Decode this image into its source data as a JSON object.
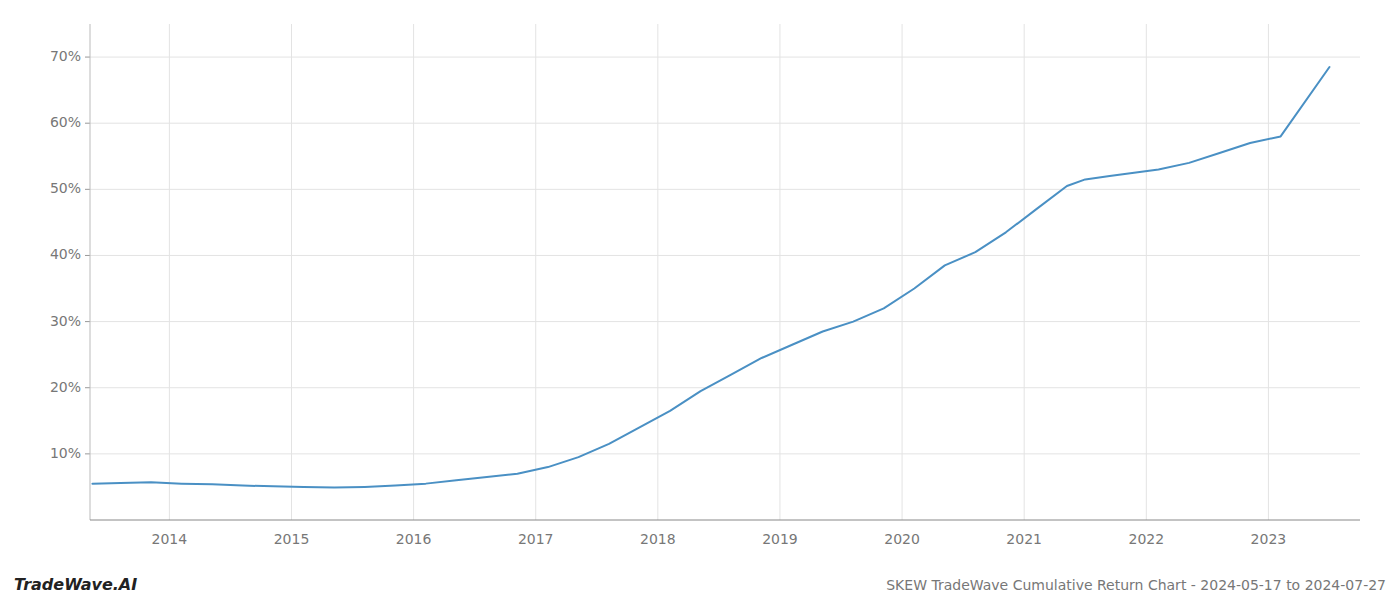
{
  "chart_data": {
    "type": "line",
    "title": "SKEW TradeWave Cumulative Return Chart - 2024-05-17 to 2024-07-27",
    "annotations": [
      "TradeWave.AI"
    ],
    "color": "#4a90c4",
    "grid": true,
    "x": [
      2013.37,
      2013.6,
      2013.85,
      2014.1,
      2014.35,
      2014.6,
      2014.85,
      2015.1,
      2015.35,
      2015.6,
      2015.85,
      2016.1,
      2016.35,
      2016.6,
      2016.85,
      2017.1,
      2017.35,
      2017.6,
      2017.85,
      2018.1,
      2018.35,
      2018.6,
      2018.85,
      2019.1,
      2019.35,
      2019.6,
      2019.85,
      2020.1,
      2020.35,
      2020.6,
      2020.85,
      2021.1,
      2021.35,
      2021.5,
      2021.7,
      2021.9,
      2022.1,
      2022.35,
      2022.6,
      2022.85,
      2023.1,
      2023.5
    ],
    "values": [
      5.5,
      5.6,
      5.7,
      5.5,
      5.4,
      5.2,
      5.1,
      5.0,
      4.9,
      5.0,
      5.2,
      5.5,
      6.0,
      6.5,
      7.0,
      8.0,
      9.5,
      11.5,
      14.0,
      16.5,
      19.5,
      22.0,
      24.5,
      26.5,
      28.5,
      30.0,
      32.0,
      35.0,
      38.5,
      40.5,
      43.5,
      47.0,
      50.5,
      51.5,
      52.0,
      52.5,
      53.0,
      54.0,
      55.5,
      57.0,
      58.0,
      68.5
    ],
    "xlim": [
      2013.35,
      2023.75
    ],
    "xticks": [
      2014,
      2015,
      2016,
      2017,
      2018,
      2019,
      2020,
      2021,
      2022,
      2023
    ],
    "ylim": [
      0,
      75
    ],
    "yticks": [
      {
        "value": 10,
        "label": "10%"
      },
      {
        "value": 20,
        "label": "20%"
      },
      {
        "value": 30,
        "label": "30%"
      },
      {
        "value": 40,
        "label": "40%"
      },
      {
        "value": 50,
        "label": "50%"
      },
      {
        "value": 60,
        "label": "60%"
      },
      {
        "value": 70,
        "label": "70%"
      }
    ]
  }
}
